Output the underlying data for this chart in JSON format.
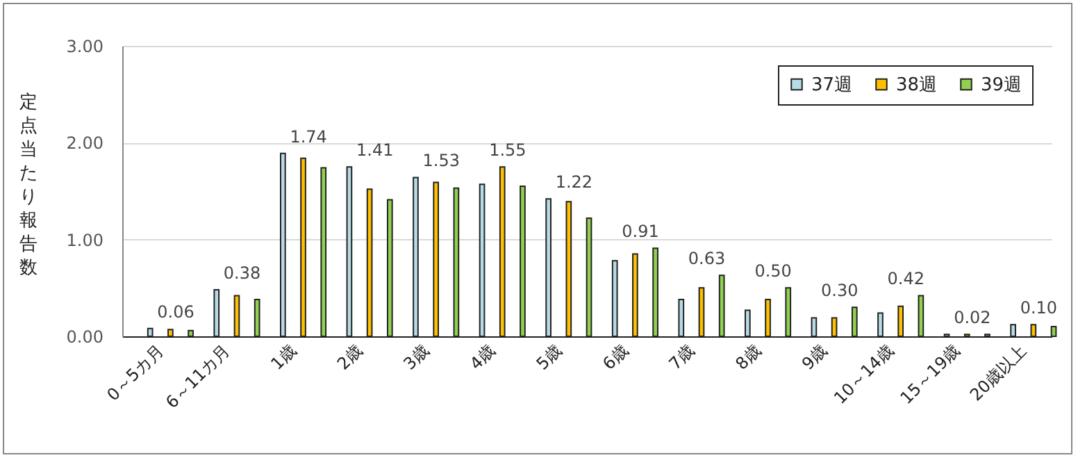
{
  "chart_data": {
    "type": "bar",
    "ylabel": "定点当たり報告数",
    "categories": [
      "0～5カ月",
      "6～11カ月",
      "1歳",
      "2歳",
      "3歳",
      "4歳",
      "5歳",
      "6歳",
      "7歳",
      "8歳",
      "9歳",
      "10～14歳",
      "15～19歳",
      "20歳以上"
    ],
    "series": [
      {
        "name": "37週",
        "color": "#b7dbe6",
        "values": [
          0.08,
          0.48,
          1.89,
          1.75,
          1.64,
          1.57,
          1.42,
          0.78,
          0.38,
          0.27,
          0.19,
          0.24,
          0.02,
          0.12
        ]
      },
      {
        "name": "38週",
        "color": "#ffc000",
        "values": [
          0.07,
          0.42,
          1.84,
          1.52,
          1.59,
          1.75,
          1.39,
          0.85,
          0.5,
          0.38,
          0.19,
          0.31,
          0.02,
          0.12
        ]
      },
      {
        "name": "39週",
        "color": "#92d050",
        "values": [
          0.06,
          0.38,
          1.74,
          1.41,
          1.53,
          1.55,
          1.22,
          0.91,
          0.63,
          0.5,
          0.3,
          0.42,
          0.02,
          0.1
        ],
        "value_labels": [
          "0.06",
          "0.38",
          "1.74",
          "1.41",
          "1.53",
          "1.55",
          "1.22",
          "0.91",
          "0.63",
          "0.50",
          "0.30",
          "0.42",
          "0.02",
          "0.10"
        ]
      }
    ],
    "ylim": [
      0,
      3
    ],
    "yticks": [
      {
        "value": 0,
        "label": "0.00"
      },
      {
        "value": 1,
        "label": "1.00"
      },
      {
        "value": 2,
        "label": "2.00"
      },
      {
        "value": 3,
        "label": "3.00"
      }
    ],
    "grid": "y",
    "legend": "top right"
  }
}
